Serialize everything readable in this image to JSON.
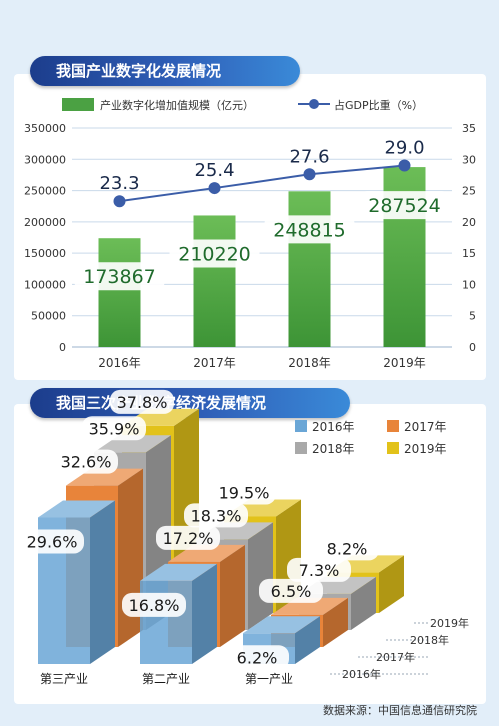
{
  "source_text": "数据来源：中国信息通信研究院",
  "chart_data": [
    {
      "type": "bar",
      "title": "我国产业数字化发展情况",
      "categories": [
        "2016年",
        "2017年",
        "2018年",
        "2019年"
      ],
      "series": [
        {
          "name": "产业数字化增加值规模（亿元）",
          "kind": "bar",
          "axis": "left",
          "color": "#4ba143",
          "values": [
            173867,
            210220,
            248815,
            287524
          ]
        },
        {
          "name": "占GDP比重（%）",
          "kind": "line",
          "axis": "right",
          "color": "#3b5da8",
          "values": [
            23.3,
            25.4,
            27.6,
            29.0
          ]
        }
      ],
      "value_labels": [
        "173867",
        "210220",
        "248815",
        "287524"
      ],
      "rate_labels": [
        "23.3",
        "25.4",
        "27.6",
        "29.0"
      ],
      "ylim_left": [
        0,
        350000
      ],
      "ylim_right": [
        0,
        35
      ],
      "yticks_left": [
        "0",
        "50000",
        "100000",
        "150000",
        "200000",
        "250000",
        "300000",
        "350000"
      ],
      "yticks_right": [
        "0",
        "5",
        "10",
        "15",
        "20",
        "25",
        "30",
        "35"
      ],
      "grid": true,
      "legend": "top"
    },
    {
      "type": "bar",
      "title": "我国三次产业数字经济发展情况",
      "categories": [
        "第三产业",
        "第二产业",
        "第一产业"
      ],
      "series": [
        {
          "name": "2016年",
          "color": "#6aa6d6",
          "values": [
            29.6,
            16.8,
            6.2
          ],
          "labels": [
            "29.6%",
            "16.8%",
            "6.2%"
          ]
        },
        {
          "name": "2017年",
          "color": "#e8843a",
          "values": [
            32.6,
            17.2,
            6.5
          ],
          "labels": [
            "32.6%",
            "17.2%",
            "6.5%"
          ]
        },
        {
          "name": "2018年",
          "color": "#a9a9a9",
          "values": [
            35.9,
            18.3,
            7.3
          ],
          "labels": [
            "35.9%",
            "18.3%",
            "7.3%"
          ]
        },
        {
          "name": "2019年",
          "color": "#e2c21a",
          "values": [
            37.8,
            19.5,
            8.2
          ],
          "labels": [
            "37.8%",
            "19.5%",
            "8.2%"
          ]
        }
      ],
      "unit": "%",
      "legend": "top-right"
    }
  ]
}
